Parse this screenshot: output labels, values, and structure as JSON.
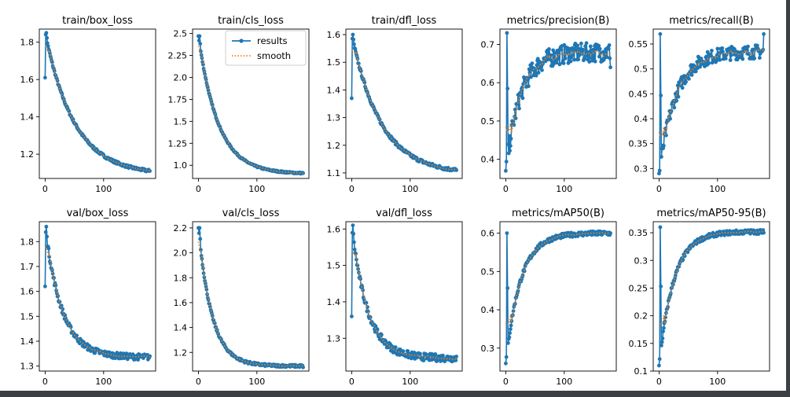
{
  "figure": {
    "type": "line",
    "layout": "2x5 grid",
    "legend": {
      "location": "top-right of train/cls_loss panel",
      "entries": [
        "results",
        "smooth"
      ]
    },
    "colors": {
      "results": "#1f77b4",
      "smooth": "#ff7f0e",
      "axes": "#000000",
      "background": "#ffffff",
      "window_frame": "#3c3f44"
    },
    "epochs": 180
  },
  "chart_data": [
    {
      "type": "line",
      "title": "train/box_loss",
      "xlabel": "",
      "ylabel": "",
      "xlim": [
        -10,
        189
      ],
      "ylim": [
        1.07,
        1.87
      ],
      "xticks": [
        0,
        100
      ],
      "yticks": [
        1.2,
        1.4,
        1.6,
        1.8
      ],
      "series": [
        {
          "name": "results",
          "start": 1.61,
          "peak": 1.85,
          "end": 1.11,
          "curve": "decay",
          "shape": 0.28,
          "noise": 0.007
        },
        {
          "name": "smooth"
        }
      ]
    },
    {
      "type": "line",
      "title": "train/cls_loss",
      "xlabel": "",
      "ylabel": "",
      "xlim": [
        -10,
        189
      ],
      "ylim": [
        0.85,
        2.55
      ],
      "xticks": [
        0,
        100
      ],
      "yticks": [
        1.0,
        1.25,
        1.5,
        1.75,
        2.0,
        2.25,
        2.5
      ],
      "legend": true,
      "series": [
        {
          "name": "results",
          "start": 2.47,
          "peak": 2.47,
          "end": 0.91,
          "curve": "decay",
          "shape": 0.19,
          "noise": 0.008
        },
        {
          "name": "smooth"
        }
      ]
    },
    {
      "type": "line",
      "title": "train/dfl_loss",
      "xlabel": "",
      "ylabel": "",
      "xlim": [
        -10,
        189
      ],
      "ylim": [
        1.08,
        1.62
      ],
      "xticks": [
        0,
        100
      ],
      "yticks": [
        1.1,
        1.2,
        1.3,
        1.4,
        1.5,
        1.6
      ],
      "series": [
        {
          "name": "results",
          "start": 1.37,
          "peak": 1.6,
          "end": 1.11,
          "curve": "decay",
          "shape": 0.28,
          "noise": 0.006
        },
        {
          "name": "smooth"
        }
      ]
    },
    {
      "type": "line",
      "title": "metrics/precision(B)",
      "xlabel": "",
      "ylabel": "",
      "xlim": [
        -10,
        189
      ],
      "ylim": [
        0.35,
        0.74
      ],
      "xticks": [
        0,
        100
      ],
      "yticks": [
        0.4,
        0.5,
        0.6,
        0.7
      ],
      "series": [
        {
          "name": "results",
          "start": 0.37,
          "peak": 0.73,
          "end": 0.64,
          "curve": "rise",
          "plateau": 0.68,
          "shape": 0.14,
          "noise": 0.025
        },
        {
          "name": "smooth"
        }
      ]
    },
    {
      "type": "line",
      "title": "metrics/recall(B)",
      "xlabel": "",
      "ylabel": "",
      "xlim": [
        -10,
        189
      ],
      "ylim": [
        0.28,
        0.58
      ],
      "xticks": [
        0,
        100
      ],
      "yticks": [
        0.3,
        0.35,
        0.4,
        0.45,
        0.5,
        0.55
      ],
      "series": [
        {
          "name": "results",
          "start": 0.29,
          "peak": 0.57,
          "end": 0.57,
          "curve": "rise",
          "plateau": 0.535,
          "shape": 0.16,
          "noise": 0.014
        },
        {
          "name": "smooth"
        }
      ]
    },
    {
      "type": "line",
      "title": "val/box_loss",
      "xlabel": "",
      "ylabel": "",
      "xlim": [
        -10,
        189
      ],
      "ylim": [
        1.28,
        1.88
      ],
      "xticks": [
        0,
        100
      ],
      "yticks": [
        1.3,
        1.4,
        1.5,
        1.6,
        1.7,
        1.8
      ],
      "series": [
        {
          "name": "results",
          "start": 1.62,
          "peak": 1.86,
          "end": 1.34,
          "curve": "decay",
          "plateau": 1.335,
          "shape": 0.16,
          "noise": 0.012
        },
        {
          "name": "smooth"
        }
      ]
    },
    {
      "type": "line",
      "title": "val/cls_loss",
      "xlabel": "",
      "ylabel": "",
      "xlim": [
        -10,
        189
      ],
      "ylim": [
        1.05,
        2.25
      ],
      "xticks": [
        0,
        100
      ],
      "yticks": [
        1.2,
        1.4,
        1.6,
        1.8,
        2.0,
        2.2
      ],
      "series": [
        {
          "name": "results",
          "start": 2.2,
          "peak": 2.2,
          "end": 1.08,
          "curve": "decay",
          "plateau": 1.09,
          "shape": 0.13,
          "noise": 0.01
        },
        {
          "name": "smooth"
        }
      ]
    },
    {
      "type": "line",
      "title": "val/dfl_loss",
      "xlabel": "",
      "ylabel": "",
      "xlim": [
        -10,
        189
      ],
      "ylim": [
        1.21,
        1.62
      ],
      "xticks": [
        0,
        100
      ],
      "yticks": [
        1.3,
        1.4,
        1.5,
        1.6
      ],
      "series": [
        {
          "name": "results",
          "start": 1.36,
          "peak": 1.61,
          "end": 1.25,
          "curve": "decay",
          "plateau": 1.245,
          "shape": 0.15,
          "noise": 0.01
        },
        {
          "name": "smooth"
        }
      ]
    },
    {
      "type": "line",
      "title": "metrics/mAP50(B)",
      "xlabel": "",
      "ylabel": "",
      "xlim": [
        -10,
        189
      ],
      "ylim": [
        0.24,
        0.63
      ],
      "xticks": [
        0,
        100
      ],
      "yticks": [
        0.3,
        0.4,
        0.5,
        0.6
      ],
      "series": [
        {
          "name": "results",
          "start": 0.26,
          "peak": 0.6,
          "end": 0.6,
          "curve": "rise",
          "plateau": 0.6,
          "shape": 0.14,
          "noise": 0.006
        },
        {
          "name": "smooth"
        }
      ]
    },
    {
      "type": "line",
      "title": "metrics/mAP50-95(B)",
      "xlabel": "",
      "ylabel": "",
      "xlim": [
        -10,
        189
      ],
      "ylim": [
        0.1,
        0.37
      ],
      "xticks": [
        0,
        100
      ],
      "yticks": [
        0.1,
        0.15,
        0.2,
        0.25,
        0.3,
        0.35
      ],
      "series": [
        {
          "name": "results",
          "start": 0.11,
          "peak": 0.36,
          "end": 0.35,
          "curve": "rise",
          "plateau": 0.352,
          "shape": 0.14,
          "noise": 0.004
        },
        {
          "name": "smooth"
        }
      ]
    }
  ]
}
